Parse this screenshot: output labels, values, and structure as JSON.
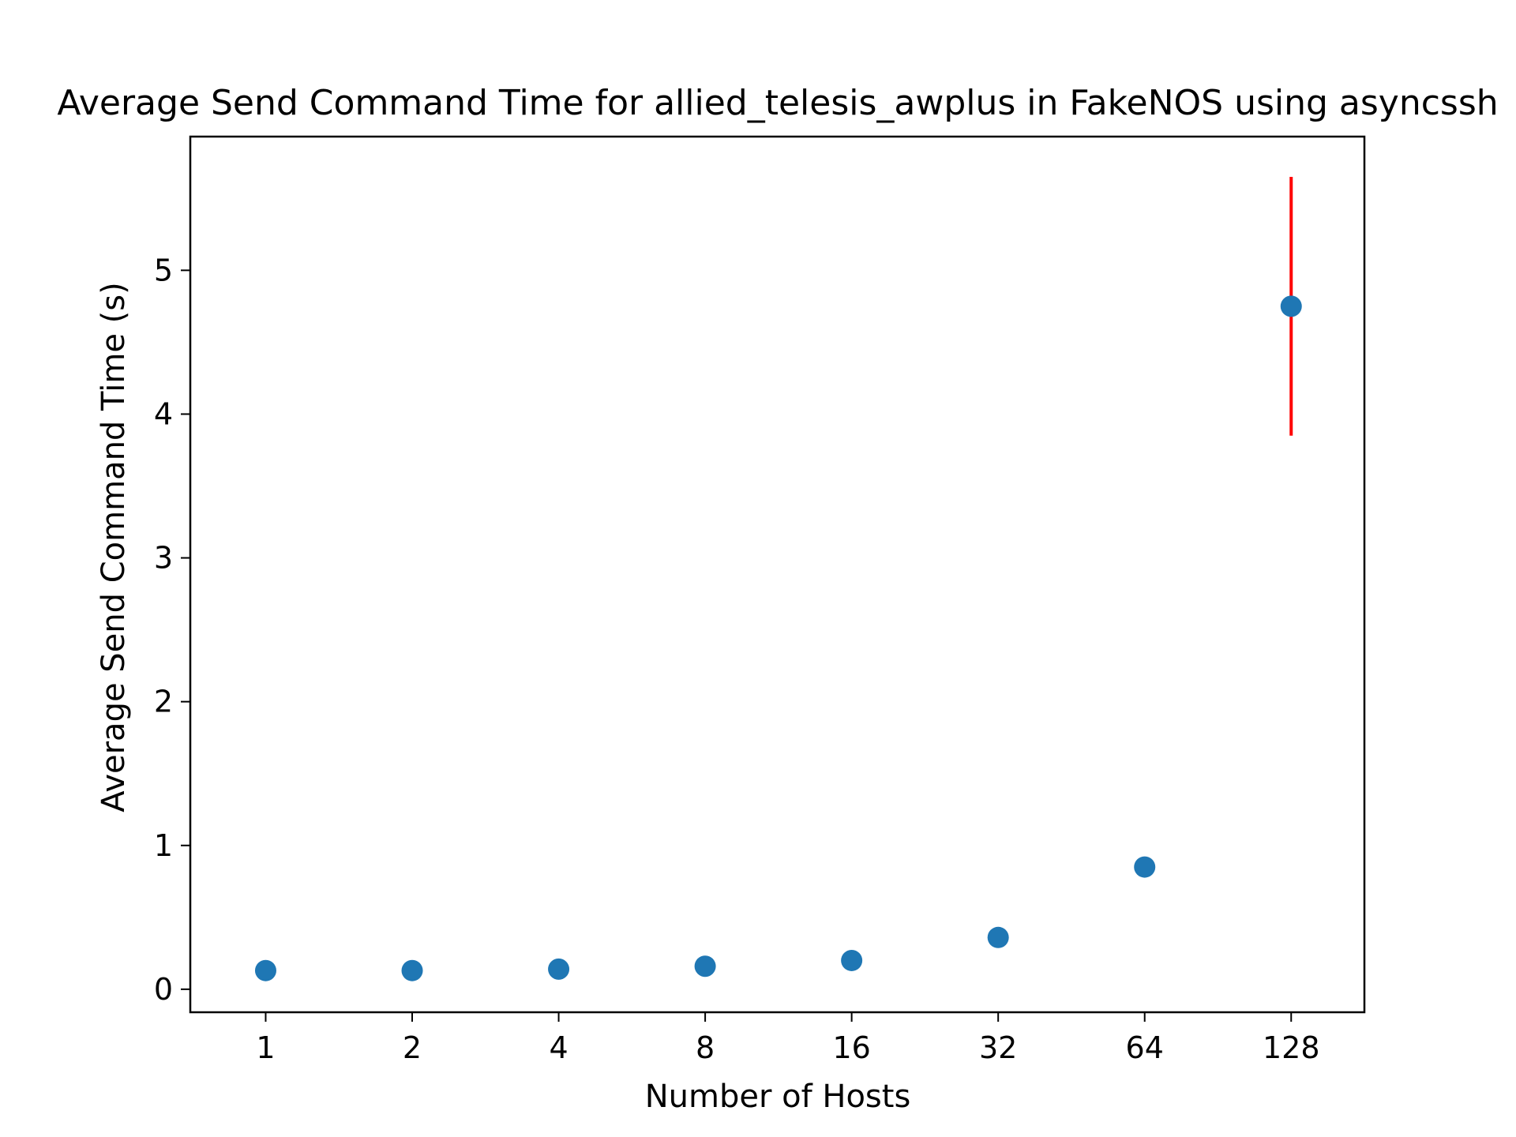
{
  "chart_data": {
    "type": "scatter",
    "title": "Average Send Command Time for allied_telesis_awplus in FakeNOS using asyncssh",
    "xlabel": "Number of Hosts",
    "ylabel": "Average Send Command Time (s)",
    "xscale": "log2",
    "x": [
      1,
      2,
      4,
      8,
      16,
      32,
      64,
      128
    ],
    "x_tick_labels": [
      "1",
      "2",
      "4",
      "8",
      "16",
      "32",
      "64",
      "128"
    ],
    "y": [
      0.13,
      0.13,
      0.14,
      0.16,
      0.2,
      0.36,
      0.85,
      4.75
    ],
    "y_error": [
      0,
      0,
      0,
      0,
      0,
      0,
      0,
      0.9
    ],
    "y_ticks": [
      0,
      1,
      2,
      3,
      4,
      5
    ],
    "y_tick_labels": [
      "0",
      "1",
      "2",
      "3",
      "4",
      "5"
    ],
    "xlim": [
      0.7,
      181
    ],
    "ylim": [
      -0.16,
      5.93
    ],
    "grid": false,
    "marker_color": "#1f77b4",
    "error_bar_color": "#ff0000"
  }
}
